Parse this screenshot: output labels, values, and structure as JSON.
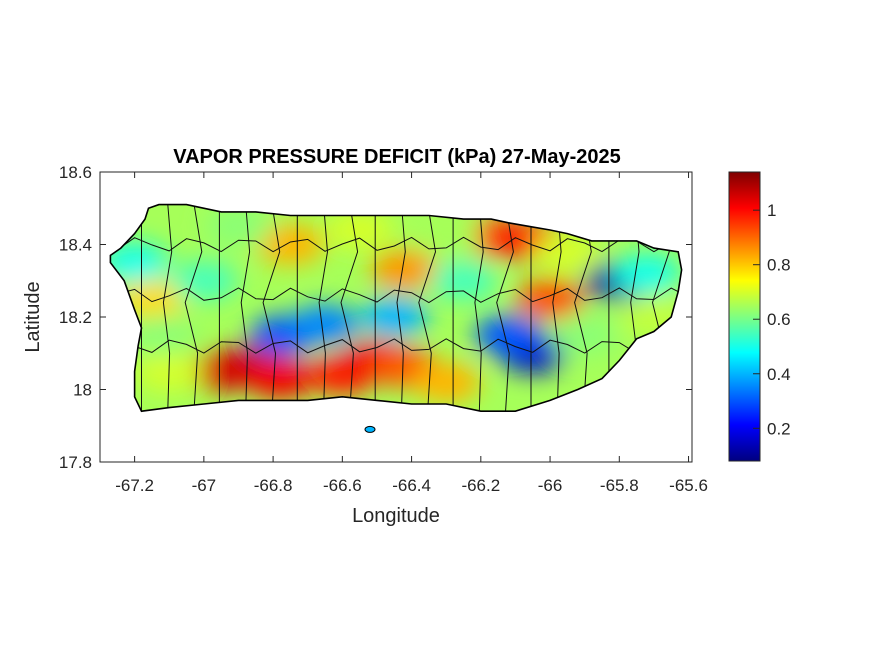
{
  "chart_data": {
    "type": "heatmap",
    "title": "VAPOR PRESSURE DEFICIT (kPa) 27-May-2025",
    "xlabel": "Longitude",
    "ylabel": "Latitude",
    "xlim": [
      -67.3,
      -65.59
    ],
    "ylim": [
      17.8,
      18.6
    ],
    "x_ticks": [
      {
        "value": -67.2,
        "label": "-67.2"
      },
      {
        "value": -67.0,
        "label": "-67"
      },
      {
        "value": -66.8,
        "label": "-66.8"
      },
      {
        "value": -66.6,
        "label": "-66.6"
      },
      {
        "value": -66.4,
        "label": "-66.4"
      },
      {
        "value": -66.2,
        "label": "-66.2"
      },
      {
        "value": -66.0,
        "label": "-66"
      },
      {
        "value": -65.8,
        "label": "-65.8"
      },
      {
        "value": -65.6,
        "label": "-65.6"
      }
    ],
    "y_ticks": [
      {
        "value": 17.8,
        "label": "17.8"
      },
      {
        "value": 18.0,
        "label": "18"
      },
      {
        "value": 18.2,
        "label": "18.2"
      },
      {
        "value": 18.4,
        "label": "18.4"
      },
      {
        "value": 18.6,
        "label": "18.6"
      }
    ],
    "colorbar": {
      "min": 0.08,
      "max": 1.14,
      "colormap": [
        "#00007f",
        "#0000ff",
        "#0080ff",
        "#00ffff",
        "#80ff80",
        "#ffff00",
        "#ff8000",
        "#ff0000",
        "#7f0000"
      ],
      "ticks": [
        {
          "value": 0.2,
          "label": "0.2"
        },
        {
          "value": 0.4,
          "label": "0.4"
        },
        {
          "value": 0.6,
          "label": "0.6"
        },
        {
          "value": 0.8,
          "label": "0.8"
        },
        {
          "value": 1.0,
          "label": "1"
        }
      ]
    },
    "outline_points": [
      [
        -67.27,
        18.37
      ],
      [
        -67.24,
        18.39
      ],
      [
        -67.2,
        18.43
      ],
      [
        -67.17,
        18.47
      ],
      [
        -67.16,
        18.5
      ],
      [
        -67.13,
        18.51
      ],
      [
        -67.05,
        18.51
      ],
      [
        -66.95,
        18.49
      ],
      [
        -66.85,
        18.49
      ],
      [
        -66.75,
        18.48
      ],
      [
        -66.65,
        18.48
      ],
      [
        -66.55,
        18.48
      ],
      [
        -66.45,
        18.48
      ],
      [
        -66.35,
        18.48
      ],
      [
        -66.25,
        18.47
      ],
      [
        -66.17,
        18.47
      ],
      [
        -66.12,
        18.46
      ],
      [
        -66.06,
        18.45
      ],
      [
        -66.0,
        18.44
      ],
      [
        -65.95,
        18.43
      ],
      [
        -65.88,
        18.41
      ],
      [
        -65.82,
        18.41
      ],
      [
        -65.75,
        18.41
      ],
      [
        -65.7,
        18.39
      ],
      [
        -65.63,
        18.38
      ],
      [
        -65.62,
        18.33
      ],
      [
        -65.63,
        18.27
      ],
      [
        -65.65,
        18.2
      ],
      [
        -65.7,
        18.16
      ],
      [
        -65.75,
        18.14
      ],
      [
        -65.8,
        18.08
      ],
      [
        -65.85,
        18.03
      ],
      [
        -65.92,
        18.0
      ],
      [
        -66.0,
        17.97
      ],
      [
        -66.1,
        17.94
      ],
      [
        -66.2,
        17.94
      ],
      [
        -66.3,
        17.96
      ],
      [
        -66.4,
        17.96
      ],
      [
        -66.5,
        17.97
      ],
      [
        -66.6,
        17.98
      ],
      [
        -66.7,
        17.97
      ],
      [
        -66.8,
        17.97
      ],
      [
        -66.9,
        17.97
      ],
      [
        -67.0,
        17.96
      ],
      [
        -67.1,
        17.95
      ],
      [
        -67.18,
        17.94
      ],
      [
        -67.2,
        17.98
      ],
      [
        -67.2,
        18.05
      ],
      [
        -67.19,
        18.12
      ],
      [
        -67.18,
        18.17
      ],
      [
        -67.2,
        18.22
      ],
      [
        -67.23,
        18.3
      ],
      [
        -67.27,
        18.35
      ]
    ],
    "vpd_regions": [
      {
        "lon": -66.85,
        "lat": 18.07,
        "value": 1.08
      },
      {
        "lon": -66.95,
        "lat": 18.05,
        "value": 1.05
      },
      {
        "lon": -66.78,
        "lat": 18.03,
        "value": 1.02
      },
      {
        "lon": -66.6,
        "lat": 18.04,
        "value": 0.98
      },
      {
        "lon": -66.5,
        "lat": 18.08,
        "value": 1.02
      },
      {
        "lon": -66.42,
        "lat": 18.06,
        "value": 0.92
      },
      {
        "lon": -66.3,
        "lat": 18.02,
        "value": 0.82
      },
      {
        "lon": -66.15,
        "lat": 18.42,
        "value": 0.95
      },
      {
        "lon": -66.05,
        "lat": 18.41,
        "value": 1.0
      },
      {
        "lon": -66.0,
        "lat": 18.25,
        "value": 0.92
      },
      {
        "lon": -66.75,
        "lat": 18.4,
        "value": 0.82
      },
      {
        "lon": -66.42,
        "lat": 18.33,
        "value": 0.85
      },
      {
        "lon": -67.15,
        "lat": 18.25,
        "value": 0.78
      },
      {
        "lon": -66.77,
        "lat": 18.15,
        "value": 0.3
      },
      {
        "lon": -66.65,
        "lat": 18.18,
        "value": 0.35
      },
      {
        "lon": -66.45,
        "lat": 18.2,
        "value": 0.4
      },
      {
        "lon": -66.05,
        "lat": 18.1,
        "value": 0.15
      },
      {
        "lon": -66.12,
        "lat": 18.15,
        "value": 0.3
      },
      {
        "lon": -65.8,
        "lat": 18.3,
        "value": 0.12
      },
      {
        "lon": -65.72,
        "lat": 18.32,
        "value": 0.5
      },
      {
        "lon": -67.2,
        "lat": 18.35,
        "value": 0.5
      },
      {
        "lon": -67.0,
        "lat": 18.3,
        "value": 0.55
      },
      {
        "lon": -66.9,
        "lat": 18.45,
        "value": 0.62
      },
      {
        "lon": -66.55,
        "lat": 18.44,
        "value": 0.7
      },
      {
        "lon": -66.3,
        "lat": 18.42,
        "value": 0.65
      },
      {
        "lon": -65.9,
        "lat": 18.15,
        "value": 0.62
      },
      {
        "lon": -65.7,
        "lat": 18.2,
        "value": 0.68
      },
      {
        "lon": -67.1,
        "lat": 18.05,
        "value": 0.7
      },
      {
        "lon": -67.12,
        "lat": 18.15,
        "value": 0.62
      },
      {
        "lon": -66.25,
        "lat": 18.3,
        "value": 0.55
      },
      {
        "lon": -65.95,
        "lat": 18.38,
        "value": 0.7
      }
    ],
    "islands": [
      {
        "lon": -66.52,
        "lat": 17.89,
        "value": 0.4
      }
    ]
  }
}
